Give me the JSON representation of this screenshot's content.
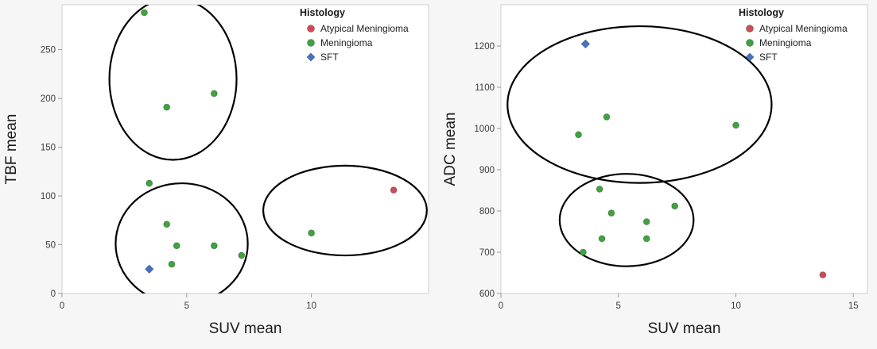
{
  "figure": {
    "background": "#f6f6f7",
    "plot_background": "#ffffff",
    "frame_color": "#cfcfcf",
    "tick_color": "#9a9a9a",
    "ellipse_color": "#000000",
    "text_color": "#1a1a1a"
  },
  "chart_data": [
    {
      "type": "scatter",
      "title": "",
      "xlabel": "SUV mean",
      "ylabel": "TBF mean",
      "xlim": [
        0,
        14.7
      ],
      "ylim": [
        0,
        296
      ],
      "xticks": [
        0,
        5,
        10
      ],
      "yticks": [
        0,
        50,
        100,
        150,
        200,
        250
      ],
      "grid": false,
      "legend": {
        "title": "Histology",
        "position": "top-right"
      },
      "series": [
        {
          "name": "Atypical Meningioma",
          "marker": "circle",
          "color": "#cf4b57",
          "points": [
            [
              13.3,
              106
            ]
          ]
        },
        {
          "name": "Meningioma",
          "marker": "circle",
          "color": "#3fa33f",
          "points": [
            [
              3.3,
              288
            ],
            [
              4.2,
              191
            ],
            [
              6.1,
              205
            ],
            [
              3.5,
              113
            ],
            [
              4.2,
              71
            ],
            [
              4.6,
              49
            ],
            [
              6.1,
              49
            ],
            [
              4.4,
              30
            ],
            [
              7.2,
              39
            ],
            [
              10.0,
              62
            ]
          ]
        },
        {
          "name": "SFT",
          "marker": "diamond",
          "color": "#4472c9",
          "points": [
            [
              3.5,
              25
            ]
          ]
        }
      ],
      "ellipses": [
        {
          "cx": 4.45,
          "cy": 220,
          "rx": 2.55,
          "ry": 83
        },
        {
          "cx": 4.8,
          "cy": 51,
          "rx": 2.65,
          "ry": 62
        },
        {
          "cx": 11.35,
          "cy": 85,
          "rx": 3.28,
          "ry": 46
        }
      ]
    },
    {
      "type": "scatter",
      "title": "",
      "xlabel": "SUV mean",
      "ylabel": "ADC mean",
      "xlim": [
        0,
        15.6
      ],
      "ylim": [
        600,
        1300
      ],
      "xticks": [
        0,
        5,
        10,
        15
      ],
      "yticks": [
        600,
        700,
        800,
        900,
        1000,
        1100,
        1200
      ],
      "grid": false,
      "legend": {
        "title": "Histology",
        "position": "top-right"
      },
      "series": [
        {
          "name": "Atypical Meningioma",
          "marker": "circle",
          "color": "#cf4b57",
          "points": [
            [
              13.7,
              645
            ]
          ]
        },
        {
          "name": "Meningioma",
          "marker": "circle",
          "color": "#3fa33f",
          "points": [
            [
              3.3,
              985
            ],
            [
              4.5,
              1028
            ],
            [
              10.0,
              1008
            ],
            [
              4.2,
              853
            ],
            [
              4.7,
              795
            ],
            [
              6.2,
              774
            ],
            [
              7.4,
              812
            ],
            [
              4.3,
              733
            ],
            [
              6.2,
              733
            ],
            [
              3.5,
              700
            ]
          ]
        },
        {
          "name": "SFT",
          "marker": "diamond",
          "color": "#4472c9",
          "points": [
            [
              3.6,
              1205
            ]
          ]
        }
      ],
      "ellipses": [
        {
          "cx": 5.9,
          "cy": 1058,
          "rx": 5.62,
          "ry": 190
        },
        {
          "cx": 5.35,
          "cy": 778,
          "rx": 2.85,
          "ry": 112
        }
      ]
    }
  ]
}
